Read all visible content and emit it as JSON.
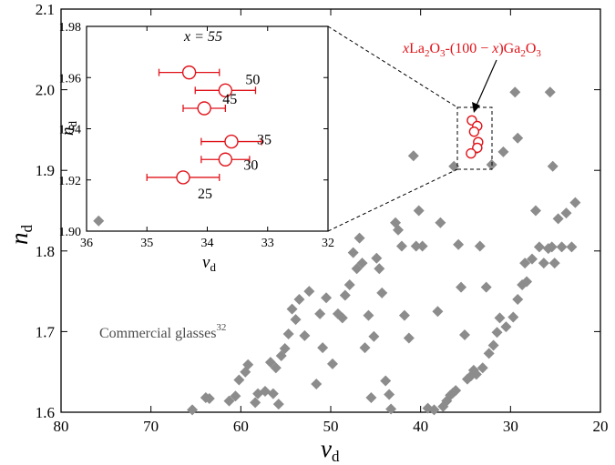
{
  "chart_data": {
    "type": "scatter",
    "xlabel": "v",
    "xlabel_sub": "d",
    "ylabel": "n",
    "ylabel_sub": "d",
    "xlim": [
      80,
      20
    ],
    "ylim": [
      1.6,
      2.1
    ],
    "xticks": [
      "80",
      "70",
      "60",
      "50",
      "40",
      "30",
      "20"
    ],
    "yticks": [
      "1.6",
      "1.7",
      "1.8",
      "1.9",
      "2.0",
      "2.1"
    ],
    "colors": {
      "commercial": "#8c8c8c",
      "lgo": "#e0131a",
      "axis": "#000000"
    },
    "series": [
      {
        "name": "Commercial glasses",
        "label": "Commercial glasses",
        "label_sup": "32",
        "marker": "diamond",
        "points": [
          [
            65.4,
            1.603
          ],
          [
            63.9,
            1.618
          ],
          [
            63.5,
            1.617
          ],
          [
            61.3,
            1.614
          ],
          [
            60.6,
            1.62
          ],
          [
            60.2,
            1.64
          ],
          [
            59.5,
            1.65
          ],
          [
            59.2,
            1.659
          ],
          [
            58.4,
            1.612
          ],
          [
            58.1,
            1.623
          ],
          [
            57.3,
            1.626
          ],
          [
            56.7,
            1.662
          ],
          [
            56.4,
            1.623
          ],
          [
            56.1,
            1.655
          ],
          [
            55.8,
            1.61
          ],
          [
            55.5,
            1.67
          ],
          [
            55.1,
            1.679
          ],
          [
            54.7,
            1.697
          ],
          [
            54.3,
            1.728
          ],
          [
            53.9,
            1.715
          ],
          [
            53.5,
            1.74
          ],
          [
            52.9,
            1.695
          ],
          [
            52.4,
            1.75
          ],
          [
            51.6,
            1.635
          ],
          [
            51.2,
            1.722
          ],
          [
            50.9,
            1.68
          ],
          [
            50.5,
            1.742
          ],
          [
            49.8,
            1.66
          ],
          [
            49.2,
            1.722
          ],
          [
            48.7,
            1.717
          ],
          [
            48.4,
            1.745
          ],
          [
            47.9,
            1.758
          ],
          [
            47.5,
            1.798
          ],
          [
            47.1,
            1.778
          ],
          [
            46.8,
            1.816
          ],
          [
            46.5,
            1.785
          ],
          [
            46.2,
            1.68
          ],
          [
            45.8,
            1.72
          ],
          [
            45.5,
            1.618
          ],
          [
            45.2,
            1.694
          ],
          [
            44.9,
            1.791
          ],
          [
            44.6,
            1.778
          ],
          [
            44.3,
            1.748
          ],
          [
            43.9,
            1.639
          ],
          [
            43.5,
            1.622
          ],
          [
            43.3,
            1.604
          ],
          [
            42.8,
            1.835
          ],
          [
            42.5,
            1.826
          ],
          [
            42.1,
            1.806
          ],
          [
            41.8,
            1.72
          ],
          [
            41.3,
            1.692
          ],
          [
            40.8,
            1.918
          ],
          [
            40.5,
            1.806
          ],
          [
            40.2,
            1.85
          ],
          [
            39.8,
            1.806
          ],
          [
            39.2,
            1.605
          ],
          [
            38.5,
            1.603
          ],
          [
            38.1,
            1.725
          ],
          [
            37.8,
            1.835
          ],
          [
            37.5,
            1.607
          ],
          [
            37.1,
            1.614
          ],
          [
            36.7,
            1.621
          ],
          [
            36.4,
            1.624
          ],
          [
            36.1,
            1.627
          ],
          [
            35.8,
            1.808
          ],
          [
            35.5,
            1.755
          ],
          [
            35.1,
            1.696
          ],
          [
            34.8,
            1.641
          ],
          [
            34.4,
            1.645
          ],
          [
            34.1,
            1.652
          ],
          [
            33.8,
            1.647
          ],
          [
            33.4,
            1.806
          ],
          [
            33.1,
            1.655
          ],
          [
            32.7,
            1.755
          ],
          [
            32.4,
            1.673
          ],
          [
            31.9,
            1.683
          ],
          [
            31.5,
            1.699
          ],
          [
            31.2,
            1.717
          ],
          [
            30.8,
            1.923
          ],
          [
            30.5,
            1.706
          ],
          [
            29.7,
            1.718
          ],
          [
            29.2,
            1.74
          ],
          [
            28.7,
            1.758
          ],
          [
            28.4,
            1.785
          ],
          [
            28.2,
            1.762
          ],
          [
            27.6,
            1.79
          ],
          [
            27.2,
            1.85
          ],
          [
            26.8,
            1.805
          ],
          [
            26.3,
            1.785
          ],
          [
            25.8,
            1.803
          ],
          [
            25.4,
            1.805
          ],
          [
            25.1,
            1.785
          ],
          [
            24.7,
            1.84
          ],
          [
            24.3,
            1.805
          ],
          [
            23.8,
            1.847
          ],
          [
            23.2,
            1.805
          ],
          [
            22.8,
            1.86
          ],
          [
            29.5,
            1.997
          ],
          [
            25.6,
            1.997
          ],
          [
            25.3,
            1.905
          ],
          [
            29.2,
            1.94
          ],
          [
            32.1,
            1.907
          ],
          [
            33.7,
            1.927
          ],
          [
            36.3,
            1.905
          ],
          [
            52.2,
            1.995
          ]
        ]
      },
      {
        "name": "xLa2O3-(100 − x)Ga2O3",
        "marker": "circle",
        "points": [
          {
            "x": 34.3,
            "y": 1.962,
            "xerr": 0.5,
            "label": "55"
          },
          {
            "x": 33.7,
            "y": 1.955,
            "xerr": 0.5,
            "label": "50"
          },
          {
            "x": 34.05,
            "y": 1.948,
            "xerr": 0.35,
            "label": "45"
          },
          {
            "x": 33.6,
            "y": 1.935,
            "xerr": 0.5,
            "label": "35"
          },
          {
            "x": 33.7,
            "y": 1.928,
            "xerr": 0.4,
            "label": "30"
          },
          {
            "x": 34.4,
            "y": 1.921,
            "xerr": 0.6,
            "label": "25"
          }
        ]
      }
    ],
    "inset": {
      "xlim": [
        36,
        32
      ],
      "ylim": [
        1.9,
        1.98
      ],
      "xticks": [
        "36",
        "35",
        "34",
        "33",
        "32"
      ],
      "yticks": [
        "1.90",
        "1.92",
        "1.94",
        "1.96",
        "1.98"
      ],
      "xlabel": "v",
      "xlabel_sub": "d",
      "ylabel": "n",
      "ylabel_sub": "d",
      "x_title": "x = 55",
      "gray_points": [
        [
          35.8,
          1.904
        ]
      ],
      "labels": [
        "50",
        "45",
        "35",
        "30",
        "25"
      ]
    },
    "annotation": {
      "p1": "x",
      "p2": "La",
      "p3": "2",
      "p4": "O",
      "p5": "3",
      "p6": "-(100 − ",
      "p7": "x",
      "p8": ")Ga",
      "p9": "2",
      "p10": "O",
      "p11": "3"
    }
  }
}
